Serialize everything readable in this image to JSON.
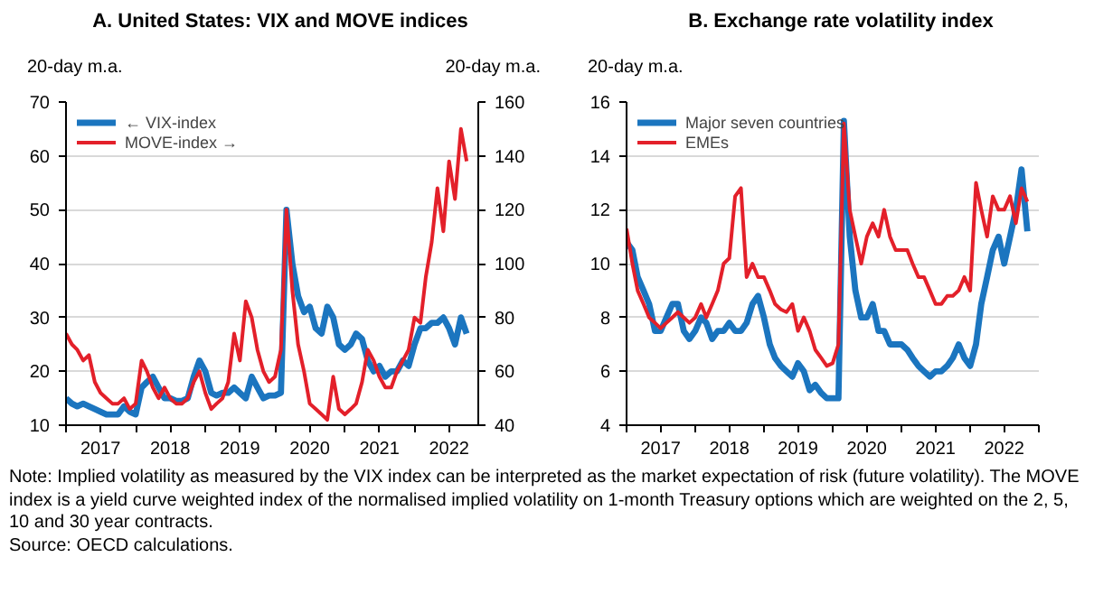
{
  "chart_data": [
    {
      "type": "line",
      "title": "A. United States: VIX and MOVE indices",
      "ylabel": "20-day m.a.",
      "y2label": "20-day m.a.",
      "x": [
        "2017-01",
        "2017-02",
        "2017-03",
        "2017-04",
        "2017-05",
        "2017-06",
        "2017-07",
        "2017-08",
        "2017-09",
        "2017-10",
        "2017-11",
        "2017-12",
        "2018-01",
        "2018-02",
        "2018-03",
        "2018-04",
        "2018-05",
        "2018-06",
        "2018-07",
        "2018-08",
        "2018-09",
        "2018-10",
        "2018-11",
        "2018-12",
        "2019-01",
        "2019-02",
        "2019-03",
        "2019-04",
        "2019-05",
        "2019-06",
        "2019-07",
        "2019-08",
        "2019-09",
        "2019-10",
        "2019-11",
        "2019-12",
        "2020-01",
        "2020-02",
        "2020-03",
        "2020-04",
        "2020-05",
        "2020-06",
        "2020-07",
        "2020-08",
        "2020-09",
        "2020-10",
        "2020-11",
        "2020-12",
        "2021-01",
        "2021-02",
        "2021-03",
        "2021-04",
        "2021-05",
        "2021-06",
        "2021-07",
        "2021-08",
        "2021-09",
        "2021-10",
        "2021-11",
        "2021-12",
        "2022-01",
        "2022-02",
        "2022-03",
        "2022-04",
        "2022-05",
        "2022-06",
        "2022-07",
        "2022-08",
        "2022-09",
        "2022-10"
      ],
      "series": [
        {
          "name": "← VIX-index",
          "color": "#1b75bf",
          "values": [
            15,
            14,
            13.5,
            14,
            13.5,
            13,
            12.5,
            12,
            12,
            12,
            13.5,
            12.5,
            12,
            17,
            18,
            19,
            17,
            15,
            15,
            14.5,
            14.5,
            15,
            19,
            22,
            20,
            16,
            15.5,
            16,
            16,
            17,
            16,
            15,
            19,
            17,
            15,
            15.5,
            15.5,
            16,
            50,
            40,
            34,
            31,
            32,
            28,
            27,
            32,
            30,
            25,
            24,
            25,
            27,
            26,
            22,
            20,
            21,
            19,
            20,
            20,
            22,
            21,
            25,
            28,
            28,
            29,
            29,
            30,
            28,
            25,
            30,
            27
          ]
        },
        {
          "name": "MOVE-index →",
          "color": "#e3202a",
          "axis": "y2",
          "values": [
            74,
            70,
            68,
            64,
            66,
            56,
            52,
            50,
            48,
            48,
            50,
            46,
            48,
            64,
            60,
            54,
            50,
            54,
            50,
            48,
            48,
            50,
            56,
            60,
            52,
            46,
            48,
            50,
            56,
            74,
            64,
            86,
            80,
            68,
            60,
            56,
            58,
            68,
            120,
            90,
            70,
            60,
            48,
            46,
            44,
            42,
            58,
            46,
            44,
            46,
            48,
            56,
            68,
            64,
            58,
            54,
            54,
            60,
            64,
            68,
            80,
            78,
            95,
            108,
            128,
            112,
            138,
            124,
            150,
            138
          ]
        }
      ],
      "xlim": [
        "2017-01",
        "2022-12"
      ],
      "xticks": [
        {
          "value": "2017-01",
          "label": null
        },
        {
          "value": "2017-07",
          "label": "2017"
        },
        {
          "value": "2018-01",
          "label": null
        },
        {
          "value": "2018-07",
          "label": "2018"
        },
        {
          "value": "2019-01",
          "label": null
        },
        {
          "value": "2019-07",
          "label": "2019"
        },
        {
          "value": "2020-01",
          "label": null
        },
        {
          "value": "2020-07",
          "label": "2020"
        },
        {
          "value": "2021-01",
          "label": null
        },
        {
          "value": "2021-07",
          "label": "2021"
        },
        {
          "value": "2022-01",
          "label": null
        },
        {
          "value": "2022-07",
          "label": "2022"
        }
      ],
      "ylim": [
        10,
        70
      ],
      "yticks": [
        10,
        20,
        30,
        40,
        50,
        60,
        70
      ],
      "y2lim": [
        40,
        160
      ],
      "y2ticks": [
        40,
        60,
        80,
        100,
        120,
        140,
        160
      ],
      "grid": "y",
      "legend": "top left",
      "annotations": [
        "Note: Implied volatility as measured by the VIX index can be interpreted as the market expectation of risk (future volatility). The MOVE index is a yield curve weighted index of the normalised implied volatility on 1-month Treasury options which are weighted on the 2, 5, 10 and 30 year contracts.",
        "Source: OECD calculations."
      ]
    },
    {
      "type": "line",
      "title": "B. Exchange rate volatility index",
      "ylabel": "20-day m.a.",
      "x": [
        "2017-01",
        "2017-02",
        "2017-03",
        "2017-04",
        "2017-05",
        "2017-06",
        "2017-07",
        "2017-08",
        "2017-09",
        "2017-10",
        "2017-11",
        "2017-12",
        "2018-01",
        "2018-02",
        "2018-03",
        "2018-04",
        "2018-05",
        "2018-06",
        "2018-07",
        "2018-08",
        "2018-09",
        "2018-10",
        "2018-11",
        "2018-12",
        "2019-01",
        "2019-02",
        "2019-03",
        "2019-04",
        "2019-05",
        "2019-06",
        "2019-07",
        "2019-08",
        "2019-09",
        "2019-10",
        "2019-11",
        "2019-12",
        "2020-01",
        "2020-02",
        "2020-03",
        "2020-04",
        "2020-05",
        "2020-06",
        "2020-07",
        "2020-08",
        "2020-09",
        "2020-10",
        "2020-11",
        "2020-12",
        "2021-01",
        "2021-02",
        "2021-03",
        "2021-04",
        "2021-05",
        "2021-06",
        "2021-07",
        "2021-08",
        "2021-09",
        "2021-10",
        "2021-11",
        "2021-12",
        "2022-01",
        "2022-02",
        "2022-03",
        "2022-04",
        "2022-05",
        "2022-06",
        "2022-07",
        "2022-08",
        "2022-09",
        "2022-10",
        "2022-11"
      ],
      "series": [
        {
          "name": "Major seven countries",
          "color": "#1b75bf",
          "values": [
            10.8,
            10.5,
            9.5,
            9,
            8.5,
            7.5,
            7.5,
            8,
            8.5,
            8.5,
            7.5,
            7.2,
            7.5,
            8,
            7.8,
            7.2,
            7.5,
            7.5,
            7.8,
            7.5,
            7.5,
            7.8,
            8.5,
            8.8,
            8,
            7,
            6.5,
            6.2,
            6,
            5.8,
            6.3,
            6,
            5.3,
            5.5,
            5.2,
            5,
            5,
            5,
            15.3,
            11,
            9,
            8,
            8,
            8.5,
            7.5,
            7.5,
            7,
            7,
            7,
            6.8,
            6.5,
            6.2,
            6,
            5.8,
            6,
            6,
            6.2,
            6.5,
            7,
            6.5,
            6.2,
            7,
            8.5,
            9.5,
            10.5,
            11,
            10,
            11,
            12,
            13.5,
            11.2
          ]
        },
        {
          "name": "EMEs",
          "color": "#e3202a",
          "values": [
            11.3,
            10,
            9,
            8.5,
            8,
            7.8,
            7.6,
            7.8,
            8,
            8.2,
            8,
            7.8,
            8,
            8.5,
            8,
            8.5,
            9,
            10,
            10.2,
            12.5,
            12.8,
            9.5,
            10,
            9.5,
            9.5,
            9,
            8.5,
            8.3,
            8.2,
            8.5,
            7.5,
            8,
            7.5,
            6.8,
            6.5,
            6.2,
            6.3,
            7,
            15.2,
            12,
            11,
            10,
            11,
            11.5,
            11,
            12,
            11,
            10.5,
            10.5,
            10.5,
            10,
            9.5,
            9.5,
            9,
            8.5,
            8.5,
            8.8,
            8.8,
            9,
            9.5,
            9,
            13,
            12,
            11,
            12.5,
            12,
            12,
            12.5,
            11.5,
            12.8,
            12.3
          ]
        }
      ],
      "xlim": [
        "2017-01",
        "2023-01"
      ],
      "xticks": [
        {
          "value": "2017-01",
          "label": null
        },
        {
          "value": "2017-07",
          "label": "2017"
        },
        {
          "value": "2018-01",
          "label": null
        },
        {
          "value": "2018-07",
          "label": "2018"
        },
        {
          "value": "2019-01",
          "label": null
        },
        {
          "value": "2019-07",
          "label": "2019"
        },
        {
          "value": "2020-01",
          "label": null
        },
        {
          "value": "2020-07",
          "label": "2020"
        },
        {
          "value": "2021-01",
          "label": null
        },
        {
          "value": "2021-07",
          "label": "2021"
        },
        {
          "value": "2022-01",
          "label": null
        },
        {
          "value": "2022-07",
          "label": "2022"
        },
        {
          "value": "2023-01",
          "label": null
        }
      ],
      "ylim": [
        4,
        16
      ],
      "yticks": [
        4,
        6,
        8,
        10,
        12,
        14,
        16
      ],
      "grid": "y",
      "legend": "top left"
    }
  ]
}
